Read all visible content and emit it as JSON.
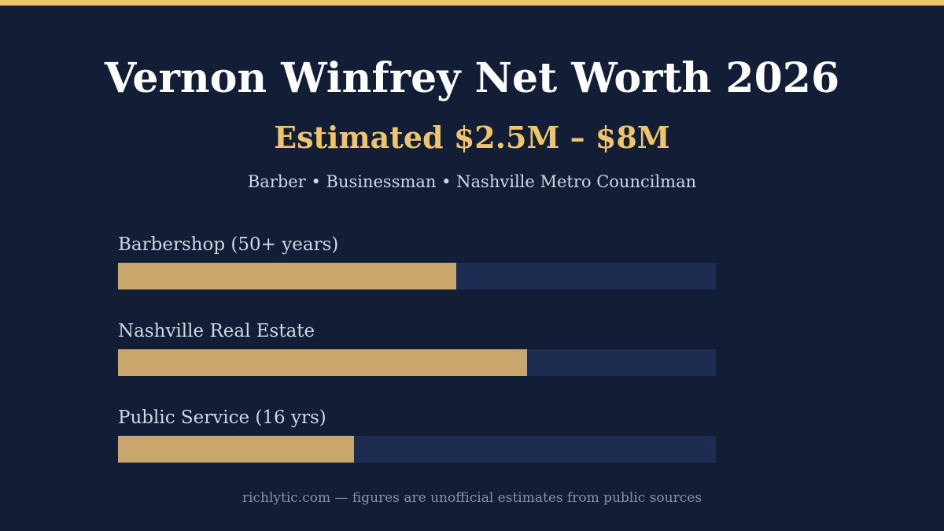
{
  "header": {
    "title": "Vernon Winfrey Net Worth 2026",
    "estimate": "Estimated $2.5M – $8M",
    "tagline": "Barber • Businessman • Nashville Metro Councilman"
  },
  "colors": {
    "accent": "#f0c468",
    "bar_fill": "#c9a66b",
    "bar_track": "#1d2d52",
    "background": "#121d36"
  },
  "chart_data": {
    "type": "bar",
    "orientation": "horizontal",
    "categories": [
      "Barbershop (50+ years)",
      "Nashville Real Estate",
      "Public Service (16 yrs)"
    ],
    "values": [
      0.566,
      0.684,
      0.395
    ],
    "xlim": [
      0,
      1
    ],
    "grid": false,
    "legend": "none"
  },
  "footer": {
    "text": "richlytic.com — figures are unofficial estimates from public sources"
  }
}
